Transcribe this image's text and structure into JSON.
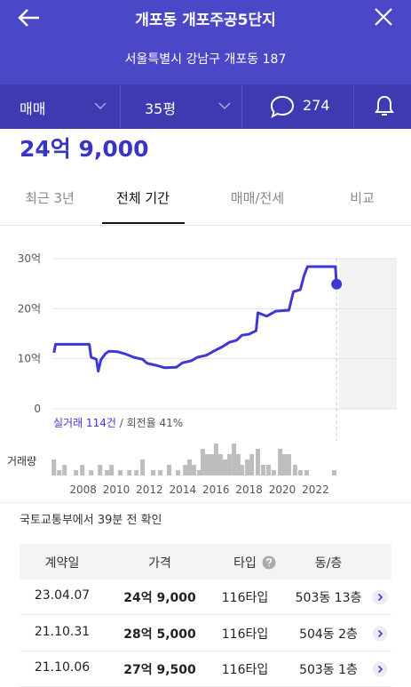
{
  "header": {
    "title": "개포동 개포주공5단지",
    "address": "서울특별시 강남구 개포동 187"
  },
  "filters": {
    "deal_type": "매매",
    "size": "35평",
    "comments": 274
  },
  "price": "24억 9,000",
  "tabs": [
    "최근 3년",
    "전체 기간",
    "매매/전세",
    "비교"
  ],
  "active_tab": 1,
  "chart_data": {
    "type": "line",
    "color": "#4038d6",
    "x": [
      2006.24,
      2006.34,
      2008.37,
      2008.48,
      2008.8,
      2008.91,
      2009.07,
      2009.34,
      2009.55,
      2010.08,
      2010.51,
      2011.05,
      2011.58,
      2011.85,
      2012.38,
      2012.92,
      2013.61,
      2013.99,
      2014.52,
      2014.89,
      2015.43,
      2015.86,
      2016.39,
      2016.82,
      2017.25,
      2017.57,
      2017.99,
      2018.42,
      2018.53,
      2019.06,
      2019.6,
      2020.4,
      2020.67,
      2021.09,
      2021.31,
      2021.52,
      2023.2,
      2023.27
    ],
    "values": [
      11.2,
      12.9,
      12.9,
      10.3,
      9.9,
      7.5,
      9.8,
      11.0,
      11.5,
      11.4,
      11.0,
      10.3,
      9.9,
      9.1,
      8.7,
      8.2,
      8.3,
      9.2,
      9.6,
      10.3,
      10.7,
      11.5,
      12.4,
      13.3,
      13.7,
      14.7,
      14.9,
      15.6,
      19.2,
      18.5,
      19.5,
      19.7,
      23.4,
      23.8,
      26.6,
      28.4,
      28.4,
      24.9
    ],
    "xlim": [
      2006.2,
      2026.9
    ],
    "xticks": [
      2008,
      2010,
      2012,
      2014,
      2016,
      2018,
      2020,
      2022
    ],
    "ylim": [
      0,
      30
    ],
    "yticks": [
      0,
      {
        "value": 10,
        "label": "10억"
      },
      {
        "value": 20,
        "label": "20억"
      },
      {
        "value": 30,
        "label": "30억"
      }
    ],
    "grid": true,
    "trade_count_label": "실거래 114건",
    "turnover_label": " / 회전율 41%",
    "volume": {
      "label": "거래량",
      "color": "#bdbdbd",
      "ylim": [
        0,
        6
      ],
      "x": [
        2006.24,
        2006.56,
        2006.88,
        2007.57,
        2007.95,
        2008.48,
        2009.02,
        2009.44,
        2009.71,
        2010.24,
        2010.78,
        2011.21,
        2011.58,
        2012.22,
        2012.65,
        2013.18,
        2013.72,
        2014.15,
        2014.41,
        2014.68,
        2015.0,
        2015.21,
        2015.48,
        2015.75,
        2016.01,
        2016.28,
        2016.55,
        2016.82,
        2017.09,
        2017.35,
        2017.57,
        2017.89,
        2018.16,
        2018.53,
        2018.85,
        2019.17,
        2019.49,
        2019.87,
        2020.13,
        2020.4,
        2020.77,
        2021.09,
        2021.47,
        2023.13
      ],
      "values": [
        3,
        1,
        2,
        1,
        2,
        1,
        2,
        1,
        2,
        1,
        1,
        1,
        3,
        1,
        1,
        2,
        1,
        2,
        3,
        2,
        1,
        5,
        4,
        4,
        6,
        4,
        3,
        4,
        6,
        4,
        2,
        3,
        4,
        5,
        2,
        2,
        1,
        5,
        4,
        4,
        2,
        1,
        1,
        1
      ]
    }
  },
  "source_note": "국토교통부에서 39분 전 확인",
  "table": {
    "columns": [
      "계약일",
      "가격",
      "타입",
      "동/층"
    ],
    "rows": [
      [
        "23.04.07",
        "24억 9,000",
        "116타입",
        "503동 13층"
      ],
      [
        "21.10.31",
        "28억 5,000",
        "116타입",
        "504동 2층"
      ],
      [
        "21.10.06",
        "27억 9,500",
        "116타입",
        "503동 1층"
      ]
    ]
  }
}
